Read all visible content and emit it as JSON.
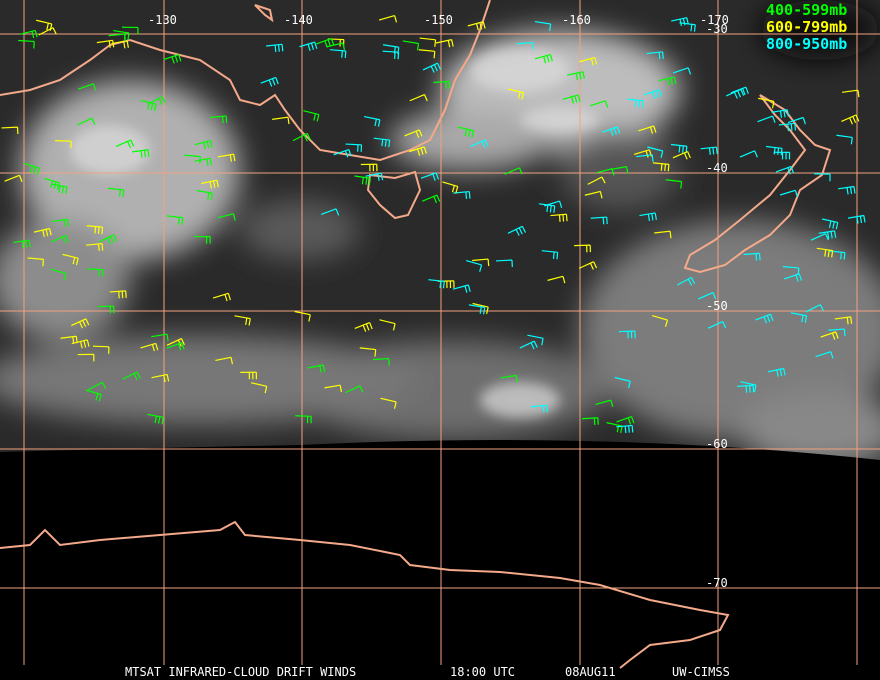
{
  "longitude_labels": [
    "-130",
    "-140",
    "-150",
    "-160",
    "-170"
  ],
  "latitude_labels": [
    "-30",
    "-40",
    "-50",
    "-60",
    "-70"
  ],
  "legend": [
    {
      "label": "400-599mb",
      "color": "#00ff00"
    },
    {
      "label": "600-799mb",
      "color": "#ffff00"
    },
    {
      "label": "800-950mb",
      "color": "#00ffff"
    }
  ],
  "footer": {
    "product": "MTSAT INFRARED-CLOUD DRIFT WINDS",
    "time": "18:00 UTC",
    "date": "08AUG11",
    "source": "UW-CIMSS"
  }
}
